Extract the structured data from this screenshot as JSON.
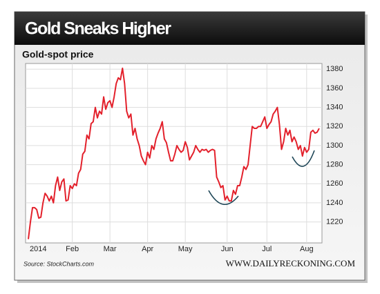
{
  "chart_data": {
    "type": "line",
    "title": "Gold Sneaks Higher",
    "subtitle": "Gold-spot price",
    "source": "Source: StockCharts.com",
    "website": "WWW.DAILYRECKONING.COM",
    "categories": [
      "2014",
      null,
      null,
      null,
      null,
      null,
      null,
      null,
      null,
      null,
      null,
      null,
      null,
      null,
      null,
      null,
      null,
      null,
      null,
      null,
      null,
      "Feb",
      null,
      null,
      null,
      null,
      null,
      null,
      null,
      null,
      null,
      null,
      null,
      null,
      null,
      null,
      null,
      null,
      null,
      "Mar",
      null,
      null,
      null,
      null,
      null,
      null,
      null,
      null,
      null,
      null,
      null,
      null,
      null,
      null,
      null,
      null,
      null,
      "Apr",
      null,
      null,
      null,
      null,
      null,
      null,
      null,
      null,
      null,
      null,
      null,
      null,
      null,
      null,
      null,
      null,
      null,
      "May",
      null,
      null,
      null,
      null,
      null,
      null,
      null,
      null,
      null,
      null,
      null,
      null,
      null,
      null,
      null,
      null,
      null,
      null,
      null,
      "Jun",
      null,
      null,
      null,
      null,
      null,
      null,
      null,
      null,
      null,
      null,
      null,
      null,
      null,
      null,
      null,
      null,
      null,
      null,
      "Jul",
      null,
      null,
      null,
      null,
      null,
      null,
      null,
      null,
      null,
      null,
      null,
      null,
      null,
      null,
      null,
      null,
      null,
      null,
      "Aug",
      null,
      null,
      null,
      null,
      null,
      null
    ],
    "series": [
      {
        "color": "#e3202b",
        "values": [
          1202,
          1220,
          1235,
          1235,
          1233,
          1224,
          1225,
          1240,
          1250,
          1247,
          1242,
          1247,
          1240,
          1258,
          1267,
          1253,
          1262,
          1265,
          1242,
          1243,
          1258,
          1255,
          1260,
          1258,
          1271,
          1275,
          1291,
          1294,
          1311,
          1307,
          1323,
          1325,
          1340,
          1329,
          1336,
          1333,
          1351,
          1338,
          1345,
          1347,
          1340,
          1351,
          1365,
          1371,
          1369,
          1381,
          1365,
          1336,
          1329,
          1333,
          1311,
          1318,
          1307,
          1300,
          1289,
          1284,
          1280,
          1293,
          1287,
          1300,
          1296,
          1307,
          1313,
          1318,
          1325,
          1307,
          1303,
          1293,
          1284,
          1284,
          1291,
          1300,
          1296,
          1293,
          1295,
          1304,
          1298,
          1285,
          1289,
          1293,
          1300,
          1296,
          1293,
          1296,
          1295,
          1296,
          1293,
          1295,
          1296,
          1295,
          1267,
          1262,
          1256,
          1258,
          1243,
          1247,
          1242,
          1242,
          1253,
          1249,
          1258,
          1258,
          1267,
          1278,
          1275,
          1280,
          1300,
          1320,
          1318,
          1318,
          1320,
          1320,
          1325,
          1330,
          1318,
          1322,
          1325,
          1333,
          1336,
          1340,
          1322,
          1296,
          1304,
          1318,
          1311,
          1316,
          1304,
          1309,
          1304,
          1296,
          1300,
          1289,
          1298,
          1293,
          1296,
          1314,
          1316,
          1313,
          1314,
          1318
        ]
      }
    ],
    "ylim": [
      1198,
      1386
    ],
    "yticks": [
      1220,
      1240,
      1260,
      1280,
      1300,
      1320,
      1340,
      1360,
      1380
    ],
    "grid": true
  }
}
